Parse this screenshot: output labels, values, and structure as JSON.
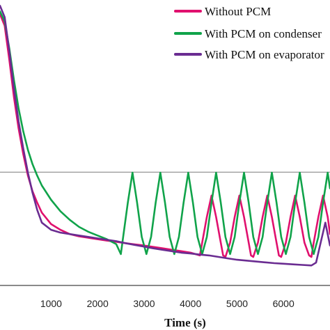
{
  "chart_data": {
    "type": "line",
    "title": "",
    "xlabel": "Time (s)",
    "ylabel": "",
    "xlim": [
      -100,
      7000
    ],
    "ylim": [
      0,
      10
    ],
    "x_ticks": [
      1000,
      2000,
      3000,
      4000,
      5000,
      6000
    ],
    "reference_line": 3.97,
    "legend_position": "top-right",
    "series": [
      {
        "name": "Without PCM",
        "color": "#e0106e",
        "x": [
          -100,
          0,
          100,
          200,
          300,
          400,
          500,
          600,
          700,
          800,
          1000,
          1200,
          1400,
          1600,
          1800,
          2000,
          2200,
          2400,
          2600,
          2800,
          3000,
          3200,
          3400,
          3600,
          3800,
          4000,
          4100,
          4200,
          4250,
          4350,
          4450,
          4550,
          4650,
          4700,
          4750,
          4850,
          4950,
          5050,
          5150,
          5250,
          5300,
          5350,
          5450,
          5550,
          5650,
          5750,
          5850,
          5900,
          5950,
          6050,
          6150,
          6250,
          6350,
          6450,
          6550,
          6600,
          6650,
          6750,
          6850,
          6950,
          7000
        ],
        "y": [
          9.5,
          9.1,
          7.9,
          6.6,
          5.5,
          4.6,
          3.85,
          3.3,
          2.9,
          2.55,
          2.15,
          1.95,
          1.8,
          1.72,
          1.67,
          1.62,
          1.57,
          1.53,
          1.48,
          1.44,
          1.4,
          1.35,
          1.3,
          1.25,
          1.2,
          1.15,
          1.1,
          1.05,
          1.5,
          2.4,
          3.15,
          2.4,
          1.5,
          1.05,
          1.0,
          1.5,
          2.4,
          3.15,
          2.4,
          1.5,
          1.05,
          1.0,
          1.5,
          2.4,
          3.15,
          2.4,
          1.5,
          1.05,
          1.0,
          1.5,
          2.4,
          3.15,
          2.4,
          1.5,
          1.05,
          1.0,
          1.5,
          2.4,
          3.15,
          2.4,
          1.8
        ]
      },
      {
        "name": "With PCM on condenser",
        "color": "#10a34a",
        "x": [
          -100,
          0,
          100,
          200,
          300,
          400,
          500,
          600,
          700,
          800,
          1000,
          1200,
          1400,
          1600,
          1800,
          2000,
          2200,
          2400,
          2500,
          2550,
          2650,
          2750,
          2850,
          2950,
          3050,
          3150,
          3250,
          3350,
          3450,
          3550,
          3650,
          3750,
          3850,
          3950,
          4050,
          4150,
          4250,
          4350,
          4450,
          4550,
          4650,
          4750,
          4850,
          4950,
          5050,
          5150,
          5250,
          5350,
          5450,
          5550,
          5650,
          5750,
          5850,
          5950,
          6050,
          6150,
          6250,
          6350,
          6450,
          6550,
          6650,
          6750,
          6850,
          6950,
          7000
        ],
        "y": [
          9.6,
          9.25,
          8.3,
          7.2,
          6.2,
          5.4,
          4.75,
          4.25,
          3.85,
          3.5,
          3.0,
          2.6,
          2.3,
          2.05,
          1.88,
          1.75,
          1.62,
          1.45,
          1.1,
          1.7,
          2.9,
          3.95,
          2.9,
          1.7,
          1.1,
          1.7,
          2.9,
          3.95,
          2.9,
          1.7,
          1.1,
          1.7,
          2.9,
          3.95,
          2.9,
          1.7,
          1.1,
          1.7,
          2.9,
          3.95,
          2.9,
          1.7,
          1.1,
          1.7,
          2.9,
          3.95,
          2.9,
          1.7,
          1.1,
          1.7,
          2.9,
          3.95,
          2.9,
          1.7,
          1.1,
          1.7,
          2.9,
          3.95,
          2.9,
          1.7,
          1.1,
          1.7,
          2.9,
          3.95,
          3.4
        ]
      },
      {
        "name": "With PCM on evaporator",
        "color": "#6a2c91",
        "x": [
          -100,
          0,
          100,
          200,
          300,
          400,
          500,
          600,
          700,
          800,
          1000,
          1200,
          1400,
          1600,
          1800,
          2000,
          2200,
          2400,
          2600,
          2800,
          3000,
          3200,
          3400,
          3600,
          3800,
          4000,
          4200,
          4400,
          4600,
          4800,
          5000,
          5200,
          5400,
          5600,
          5800,
          6000,
          6200,
          6400,
          6600,
          6700,
          6800,
          6900,
          7000
        ],
        "y": [
          9.8,
          9.4,
          8.2,
          6.9,
          5.75,
          4.8,
          3.95,
          3.25,
          2.65,
          2.2,
          1.95,
          1.85,
          1.8,
          1.75,
          1.7,
          1.65,
          1.6,
          1.55,
          1.48,
          1.42,
          1.36,
          1.3,
          1.25,
          1.2,
          1.15,
          1.12,
          1.08,
          1.05,
          1.0,
          0.95,
          0.9,
          0.87,
          0.84,
          0.81,
          0.78,
          0.76,
          0.74,
          0.72,
          0.7,
          0.8,
          1.5,
          2.2,
          1.4
        ]
      }
    ]
  }
}
